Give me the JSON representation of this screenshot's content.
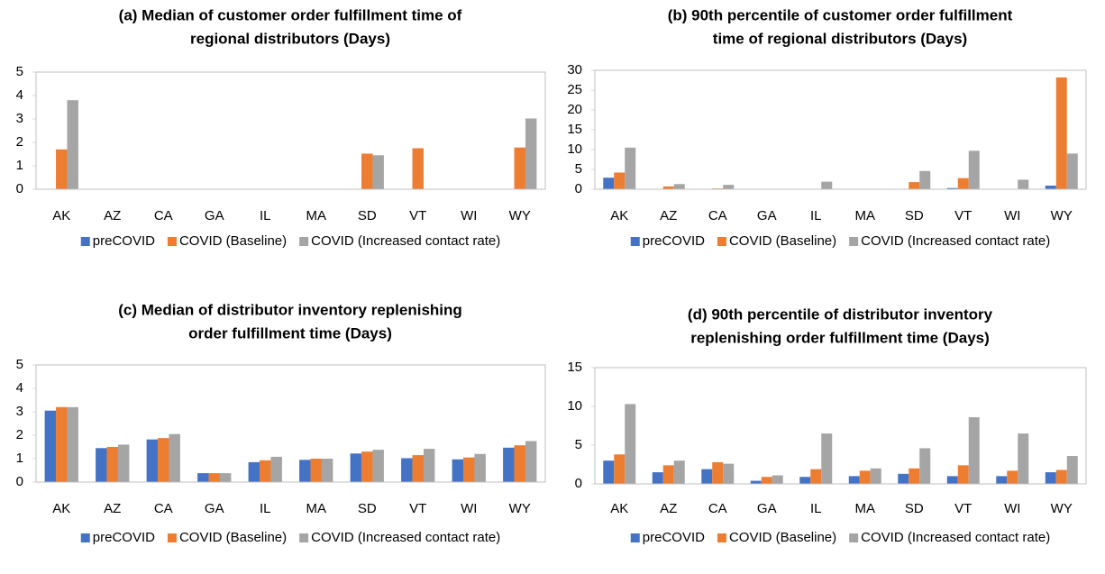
{
  "chart_data": [
    {
      "type": "bar",
      "title": [
        "(a) Median of customer order fulfillment time of",
        "regional distributors (Days)"
      ],
      "categories": [
        "AK",
        "AZ",
        "CA",
        "GA",
        "IL",
        "MA",
        "SD",
        "VT",
        "WI",
        "WY"
      ],
      "series": [
        {
          "name": "preCOVID",
          "color": "#4472c4",
          "values": [
            0,
            0,
            0,
            0,
            0,
            0,
            0,
            0,
            0,
            0
          ]
        },
        {
          "name": "COVID (Baseline)",
          "color": "#ed7d31",
          "values": [
            1.7,
            0,
            0,
            0,
            0,
            0,
            1.52,
            1.75,
            0,
            1.78
          ]
        },
        {
          "name": "COVID (Increased contact rate)",
          "color": "#a5a5a5",
          "values": [
            3.8,
            0,
            0,
            0,
            0,
            0,
            1.45,
            0,
            0,
            3.02
          ]
        }
      ],
      "ylim": [
        0,
        5
      ],
      "yticks": [
        0,
        1,
        2,
        3,
        4,
        5
      ],
      "legend": "bottom"
    },
    {
      "type": "bar",
      "title": [
        "(b) 90th percentile of customer order fulfillment",
        "time of regional distributors (Days)"
      ],
      "categories": [
        "AK",
        "AZ",
        "CA",
        "GA",
        "IL",
        "MA",
        "SD",
        "VT",
        "WI",
        "WY"
      ],
      "series": [
        {
          "name": "preCOVID",
          "color": "#4472c4",
          "values": [
            2.9,
            0,
            0,
            0,
            0,
            0,
            0,
            0.3,
            0,
            0.9
          ]
        },
        {
          "name": "COVID (Baseline)",
          "color": "#ed7d31",
          "values": [
            4.2,
            0.7,
            0.2,
            0,
            0,
            0,
            1.8,
            2.8,
            0,
            28.2
          ]
        },
        {
          "name": "COVID (Increased contact rate)",
          "color": "#a5a5a5",
          "values": [
            10.5,
            1.3,
            1.1,
            0,
            1.9,
            0,
            4.6,
            9.7,
            2.4,
            9.0
          ]
        }
      ],
      "ylim": [
        0,
        30
      ],
      "yticks": [
        0,
        5,
        10,
        15,
        20,
        25,
        30
      ],
      "legend": "bottom"
    },
    {
      "type": "bar",
      "title": [
        "(c) Median of distributor inventory replenishing",
        "order fulfillment time (Days)"
      ],
      "categories": [
        "AK",
        "AZ",
        "CA",
        "GA",
        "IL",
        "MA",
        "SD",
        "VT",
        "WI",
        "WY"
      ],
      "series": [
        {
          "name": "preCOVID",
          "color": "#4472c4",
          "values": [
            3.05,
            1.45,
            1.82,
            0.38,
            0.85,
            0.95,
            1.22,
            1.02,
            0.97,
            1.47
          ]
        },
        {
          "name": "COVID (Baseline)",
          "color": "#ed7d31",
          "values": [
            3.2,
            1.5,
            1.88,
            0.38,
            0.93,
            1.0,
            1.3,
            1.15,
            1.05,
            1.57
          ]
        },
        {
          "name": "COVID (Increased contact rate)",
          "color": "#a5a5a5",
          "values": [
            3.2,
            1.6,
            2.05,
            0.38,
            1.08,
            1.0,
            1.38,
            1.42,
            1.2,
            1.75
          ]
        }
      ],
      "ylim": [
        0,
        5
      ],
      "yticks": [
        0,
        1,
        2,
        3,
        4,
        5
      ],
      "legend": "bottom"
    },
    {
      "type": "bar",
      "title": [
        "(d) 90th percentile of distributor inventory",
        "replenishing order fulfillment time (Days)"
      ],
      "categories": [
        "AK",
        "AZ",
        "CA",
        "GA",
        "IL",
        "MA",
        "SD",
        "VT",
        "WI",
        "WY"
      ],
      "series": [
        {
          "name": "preCOVID",
          "color": "#4472c4",
          "values": [
            3.0,
            1.5,
            1.9,
            0.4,
            0.9,
            1.0,
            1.3,
            1.0,
            1.0,
            1.5
          ]
        },
        {
          "name": "COVID (Baseline)",
          "color": "#ed7d31",
          "values": [
            3.8,
            2.4,
            2.8,
            0.9,
            1.9,
            1.7,
            2.0,
            2.4,
            1.7,
            1.8
          ]
        },
        {
          "name": "COVID (Increased contact rate)",
          "color": "#a5a5a5",
          "values": [
            10.3,
            3.0,
            2.6,
            1.1,
            6.5,
            2.0,
            4.6,
            8.6,
            6.5,
            3.6
          ]
        }
      ],
      "ylim": [
        0,
        15
      ],
      "yticks": [
        0,
        5,
        10,
        15
      ],
      "legend": "bottom"
    }
  ]
}
